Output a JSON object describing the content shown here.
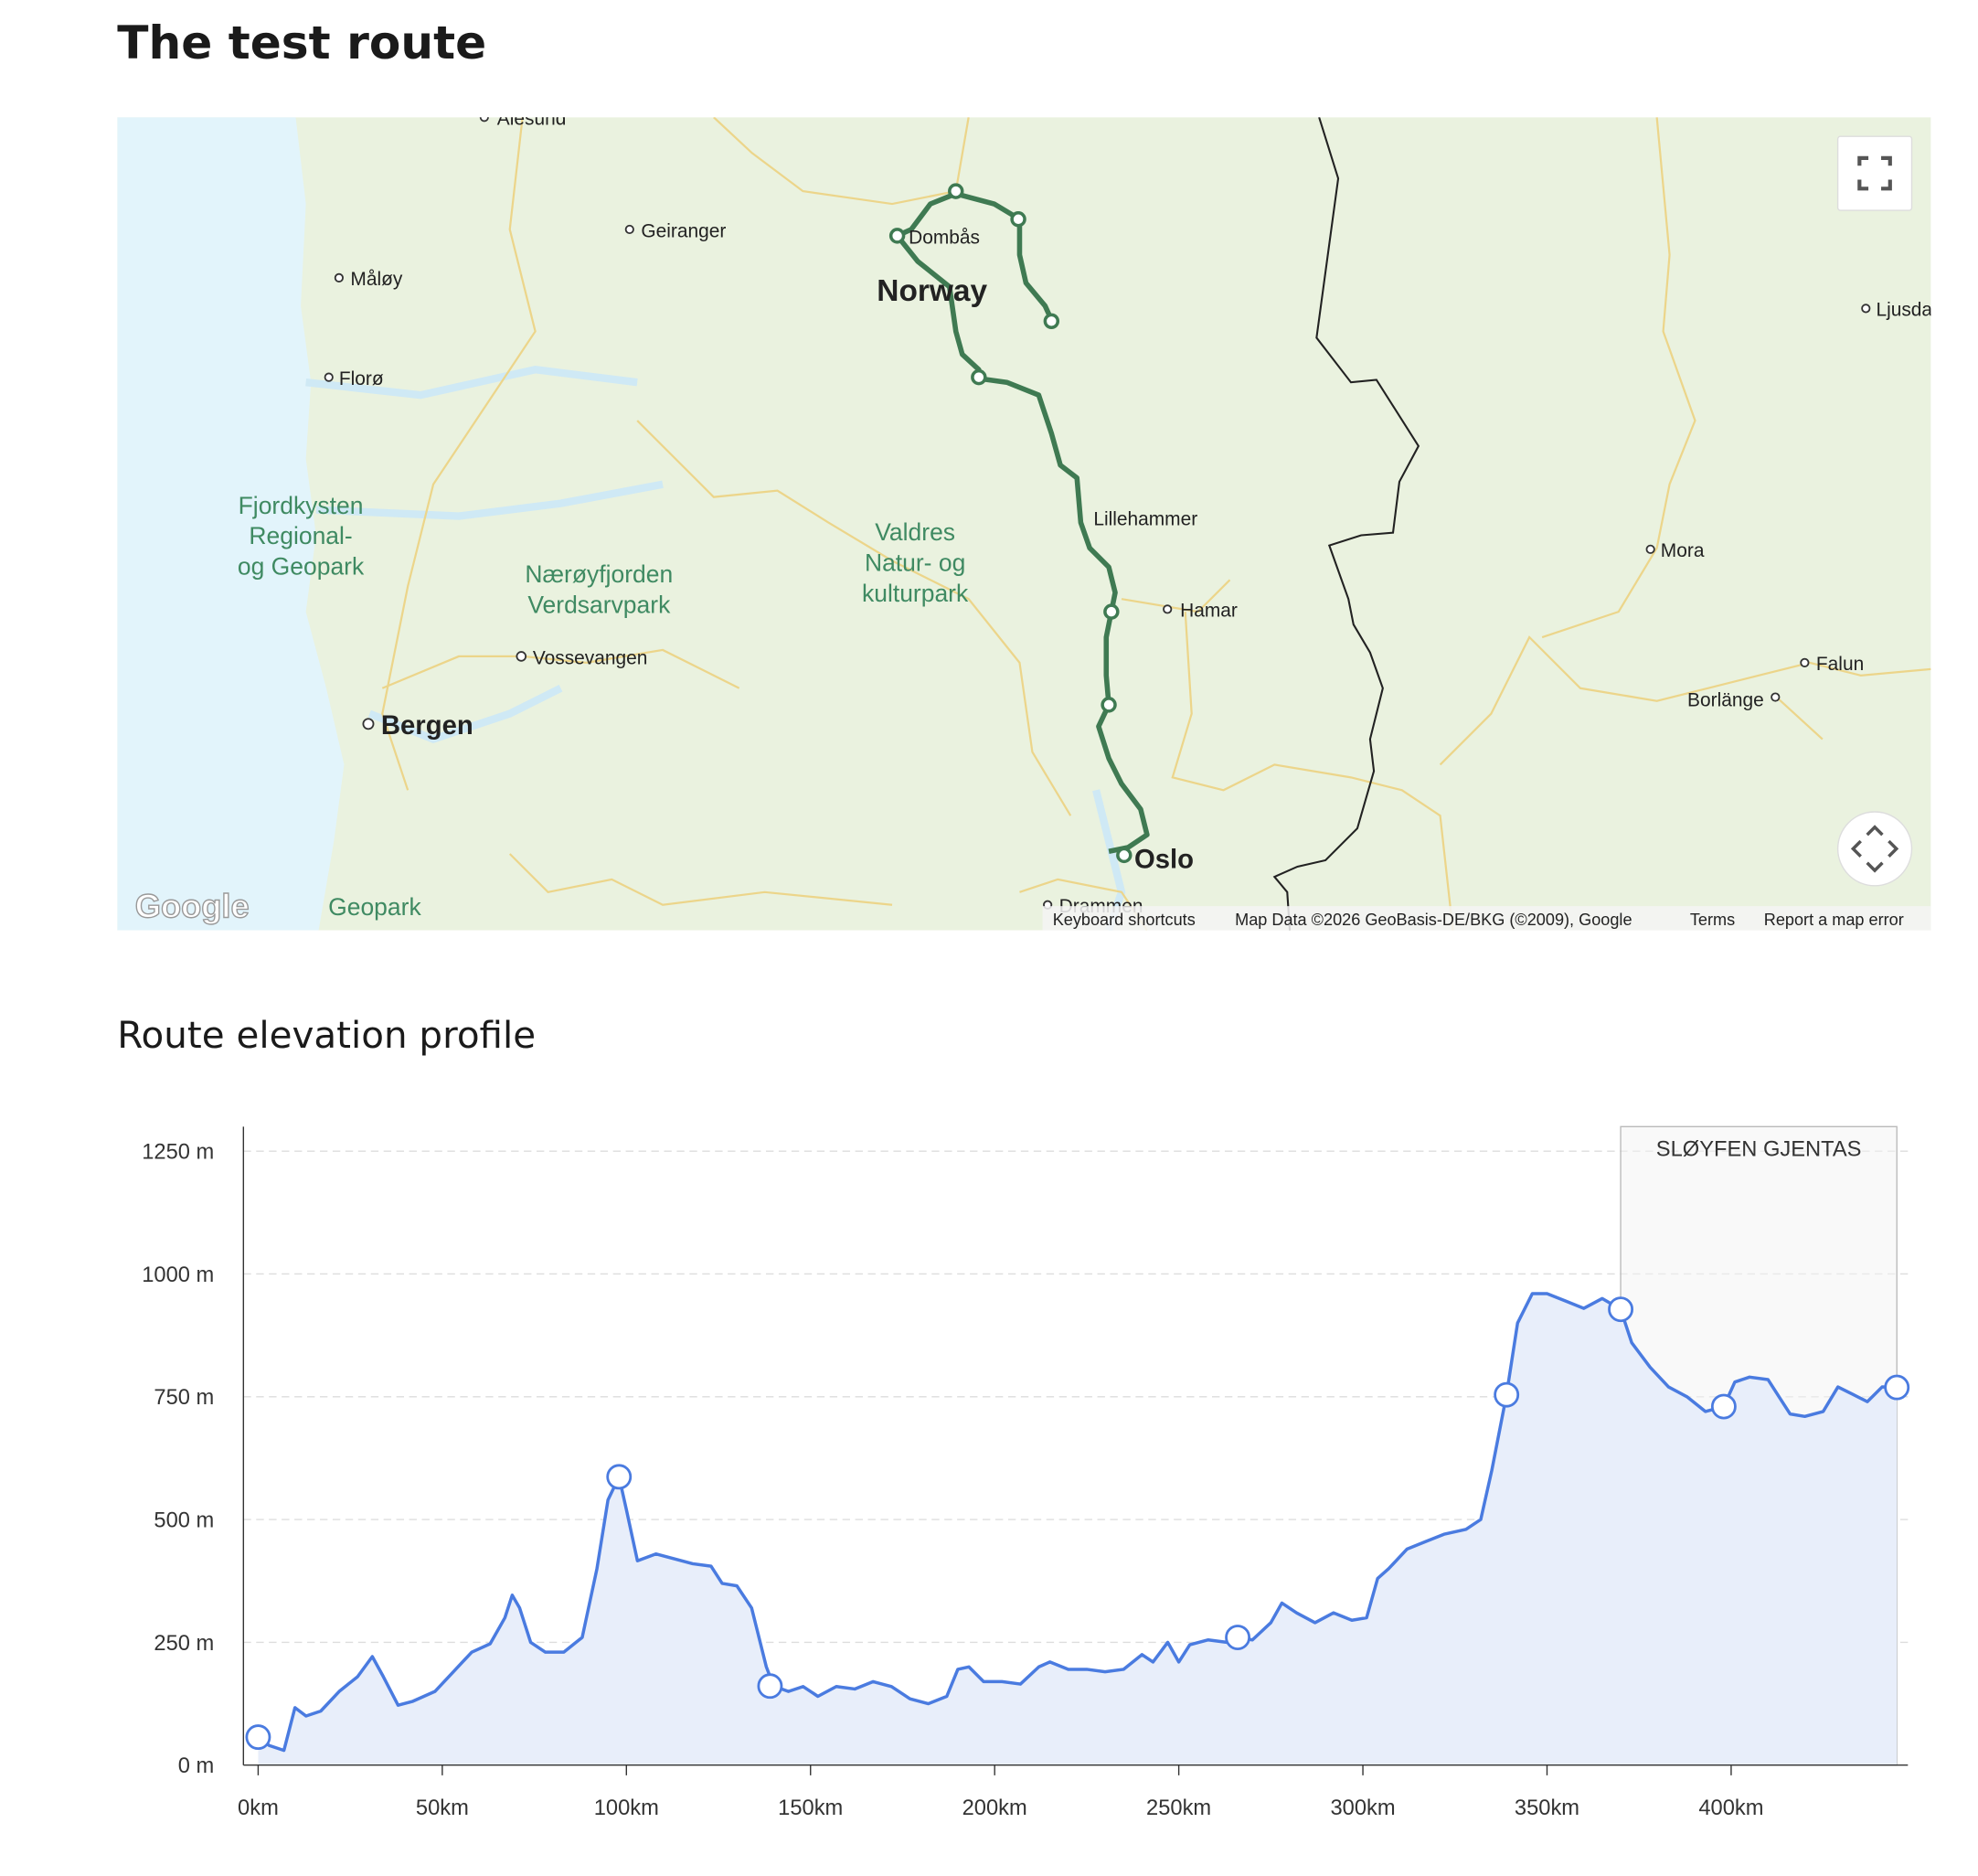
{
  "header": {
    "title": "The test route"
  },
  "map": {
    "places": [
      "Ålesund",
      "Geiranger",
      "Måløy",
      "Florø",
      "Dombås",
      "Lillehammer",
      "Hamar",
      "Vossevangen",
      "Drammen",
      "Mora",
      "Falun",
      "Borlänge",
      "Ljusdal"
    ],
    "major": [
      "Norway",
      "Bergen",
      "Oslo"
    ],
    "parks": [
      [
        "Fjordkysten",
        "Regional-",
        "og Geopark"
      ],
      [
        "Nærøyfjorden",
        "Verdsarvpark"
      ],
      [
        "Valdres",
        "Natur- og",
        "kulturpark"
      ],
      [
        "Geopark"
      ]
    ],
    "logo": "Google",
    "attribution": [
      "Keyboard shortcuts",
      "Map Data ©2026 GeoBasis-DE/BKG (©2009), Google",
      "Terms",
      "Report a map error"
    ]
  },
  "chart_data": {
    "type": "line",
    "title": "Route elevation profile",
    "color": "#4a7be0",
    "area_color": "#e8eefa",
    "x": [
      0,
      3,
      7,
      10,
      13,
      17,
      22,
      27,
      31,
      34,
      38,
      42,
      48,
      53,
      58,
      63,
      67,
      69,
      71,
      74,
      78,
      83,
      88,
      92,
      95,
      98,
      100,
      103,
      108,
      113,
      118,
      123,
      126,
      130,
      134,
      138,
      140,
      144,
      148,
      152,
      157,
      162,
      167,
      172,
      177,
      182,
      187,
      190,
      193,
      197,
      202,
      207,
      212,
      215,
      220,
      225,
      230,
      235,
      240,
      243,
      247,
      250,
      253,
      258,
      263,
      266,
      270,
      275,
      278,
      282,
      287,
      292,
      297,
      301,
      304,
      307,
      312,
      317,
      322,
      328,
      332,
      335,
      339,
      342,
      346,
      350,
      355,
      360,
      365,
      370,
      373,
      378,
      383,
      388,
      393,
      398,
      401,
      405,
      410,
      413,
      416,
      420,
      425,
      429,
      433,
      437,
      441,
      445
    ],
    "values": [
      57,
      40,
      30,
      117,
      100,
      110,
      150,
      180,
      221,
      180,
      122,
      130,
      150,
      190,
      230,
      247,
      300,
      346,
      320,
      250,
      230,
      230,
      260,
      400,
      540,
      587,
      520,
      416,
      430,
      420,
      410,
      405,
      370,
      365,
      320,
      200,
      161,
      150,
      160,
      140,
      160,
      155,
      170,
      160,
      135,
      125,
      140,
      195,
      200,
      170,
      170,
      165,
      200,
      210,
      195,
      195,
      190,
      195,
      225,
      210,
      250,
      210,
      245,
      255,
      250,
      260,
      255,
      290,
      330,
      310,
      290,
      310,
      295,
      300,
      380,
      400,
      440,
      455,
      470,
      480,
      500,
      600,
      754,
      900,
      960,
      960,
      945,
      930,
      950,
      928,
      860,
      810,
      770,
      750,
      720,
      730,
      780,
      790,
      785,
      750,
      715,
      710,
      720,
      770,
      755,
      740,
      770,
      769
    ],
    "markers": {
      "x": [
        0,
        98,
        139,
        266,
        339,
        370,
        398,
        445
      ],
      "values": [
        57,
        587,
        161,
        260,
        754,
        928,
        730,
        769
      ]
    },
    "annotation": {
      "text": "SLØYFEN GJENTAS",
      "x": [
        370,
        445
      ]
    },
    "xlim": [
      -4,
      448
    ],
    "ylim": [
      0,
      1300
    ],
    "xticks": [
      {
        "value": 0,
        "label": "0km"
      },
      {
        "value": 50,
        "label": "50km"
      },
      {
        "value": 100,
        "label": "100km"
      },
      {
        "value": 150,
        "label": "150km"
      },
      {
        "value": 200,
        "label": "200km"
      },
      {
        "value": 250,
        "label": "250km"
      },
      {
        "value": 300,
        "label": "300km"
      },
      {
        "value": 350,
        "label": "350km"
      },
      {
        "value": 400,
        "label": "400km"
      }
    ],
    "yticks": [
      {
        "value": 0,
        "label": "0 m"
      },
      {
        "value": 250,
        "label": "250 m"
      },
      {
        "value": 500,
        "label": "500 m"
      },
      {
        "value": 750,
        "label": "750 m"
      },
      {
        "value": 1000,
        "label": "1000 m"
      },
      {
        "value": 1250,
        "label": "1250 m"
      }
    ],
    "grid": true
  }
}
